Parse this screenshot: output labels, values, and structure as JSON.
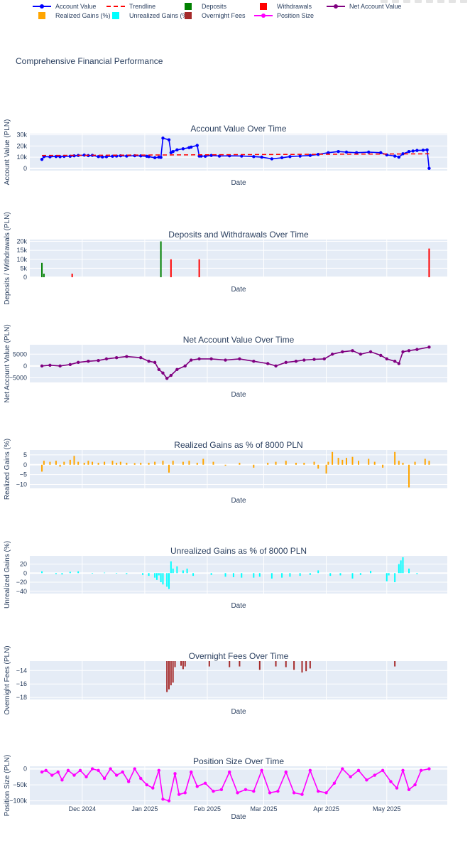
{
  "title": "Comprehensive Financial Performance",
  "legend": [
    {
      "label": "Account Value",
      "color": "#0000ff",
      "style": "line-marker"
    },
    {
      "label": "Trendline",
      "color": "#ff0000",
      "style": "dash"
    },
    {
      "label": "Deposits",
      "color": "#008000",
      "style": "square"
    },
    {
      "label": "Withdrawals",
      "color": "#ff0000",
      "style": "square"
    },
    {
      "label": "Net Account Value",
      "color": "#800080",
      "style": "line-marker"
    },
    {
      "label": "Realized Gains (%)",
      "color": "#ffa500",
      "style": "square"
    },
    {
      "label": "Unrealized Gains (%)",
      "color": "#00ffff",
      "style": "square"
    },
    {
      "label": "Overnight Fees",
      "color": "#a52a2a",
      "style": "square"
    },
    {
      "label": "Position Size",
      "color": "#ff00ff",
      "style": "line-marker"
    }
  ],
  "x_ticks": [
    {
      "label": "Dec 2024",
      "date": "2024-12-01"
    },
    {
      "label": "Jan 2025",
      "date": "2025-01-01"
    },
    {
      "label": "Feb 2025",
      "date": "2025-02-01"
    },
    {
      "label": "Mar 2025",
      "date": "2025-03-01"
    },
    {
      "label": "Apr 2025",
      "date": "2025-04-01"
    },
    {
      "label": "May 2025",
      "date": "2025-05-01"
    }
  ],
  "x_range": [
    "2024-11-05",
    "2025-05-31"
  ],
  "chart_data": [
    {
      "type": "line",
      "title": "Account Value Over Time",
      "xlabel": "Date",
      "ylabel": "Account Value (PLN)",
      "ylim": [
        -2000,
        31000
      ],
      "yticks": [
        {
          "v": 0,
          "label": "0"
        },
        {
          "v": 10000,
          "label": "10k"
        },
        {
          "v": 20000,
          "label": "20k"
        },
        {
          "v": 30000,
          "label": "30k"
        }
      ],
      "series": [
        {
          "name": "Account Value",
          "color": "#0000ff",
          "x": [
            "2024-11-11",
            "2024-11-12",
            "2024-11-15",
            "2024-11-18",
            "2024-11-20",
            "2024-11-22",
            "2024-11-25",
            "2024-11-27",
            "2024-11-29",
            "2024-12-02",
            "2024-12-04",
            "2024-12-06",
            "2024-12-09",
            "2024-12-11",
            "2024-12-13",
            "2024-12-16",
            "2024-12-18",
            "2024-12-20",
            "2024-12-23",
            "2024-12-27",
            "2024-12-30",
            "2025-01-02",
            "2025-01-03",
            "2025-01-06",
            "2025-01-08",
            "2025-01-09",
            "2025-01-10",
            "2025-01-13",
            "2025-01-14",
            "2025-01-15",
            "2025-01-17",
            "2025-01-20",
            "2025-01-23",
            "2025-01-24",
            "2025-01-27",
            "2025-01-28",
            "2025-01-29",
            "2025-01-31",
            "2025-02-03",
            "2025-02-07",
            "2025-02-12",
            "2025-02-18",
            "2025-02-24",
            "2025-02-28",
            "2025-03-05",
            "2025-03-10",
            "2025-03-14",
            "2025-03-19",
            "2025-03-24",
            "2025-03-28",
            "2025-04-02",
            "2025-04-07",
            "2025-04-11",
            "2025-04-16",
            "2025-04-22",
            "2025-04-28",
            "2025-05-01",
            "2025-05-05",
            "2025-05-07",
            "2025-05-09",
            "2025-05-12",
            "2025-05-14",
            "2025-05-16",
            "2025-05-19",
            "2025-05-21",
            "2025-05-22"
          ],
          "y": [
            8000,
            10500,
            10300,
            10600,
            10400,
            10700,
            10800,
            11200,
            11500,
            11800,
            11400,
            11600,
            10500,
            10200,
            10400,
            10800,
            11000,
            11200,
            11000,
            11300,
            11100,
            10800,
            10500,
            9500,
            10000,
            9800,
            27000,
            25500,
            14000,
            15000,
            16500,
            17500,
            18500,
            19000,
            20500,
            11000,
            11000,
            10800,
            11500,
            11000,
            11200,
            11000,
            10500,
            10000,
            8500,
            9500,
            10500,
            11000,
            11500,
            12500,
            14000,
            15000,
            14500,
            14000,
            14500,
            14000,
            12000,
            11000,
            10000,
            13000,
            15000,
            15500,
            16000,
            16200,
            16500,
            0
          ]
        },
        {
          "name": "Trendline",
          "color": "#ff0000",
          "dash": true,
          "x": [
            "2024-11-11",
            "2025-05-22"
          ],
          "y": [
            11500,
            13000
          ]
        }
      ]
    },
    {
      "type": "bar",
      "title": "Deposits and Withdrawals Over Time",
      "xlabel": "Date",
      "ylabel": "Deposits / Withdrawals (PLN)",
      "ylim": [
        0,
        21000
      ],
      "yticks": [
        {
          "v": 0,
          "label": "0"
        },
        {
          "v": 5000,
          "label": "5k"
        },
        {
          "v": 10000,
          "label": "10k"
        },
        {
          "v": 15000,
          "label": "15k"
        },
        {
          "v": 20000,
          "label": "20k"
        }
      ],
      "series": [
        {
          "name": "Deposits",
          "color": "#008000",
          "x": [
            "2024-11-11",
            "2024-11-12",
            "2025-01-09"
          ],
          "y": [
            8000,
            2000,
            20000
          ]
        },
        {
          "name": "Withdrawals",
          "color": "#ff0000",
          "x": [
            "2024-11-26",
            "2025-01-14",
            "2025-01-28",
            "2025-05-22"
          ],
          "y": [
            2000,
            10000,
            10000,
            16000
          ]
        }
      ]
    },
    {
      "type": "line",
      "title": "Net Account Value Over Time",
      "xlabel": "Date",
      "ylabel": "Net Account Value (PLN)",
      "ylim": [
        -7000,
        9000
      ],
      "yticks": [
        {
          "v": -5000,
          "label": "−5000"
        },
        {
          "v": 0,
          "label": "0"
        },
        {
          "v": 5000,
          "label": "5000"
        }
      ],
      "series": [
        {
          "name": "Net Account Value",
          "color": "#800080",
          "x": [
            "2024-11-11",
            "2024-11-15",
            "2024-11-20",
            "2024-11-25",
            "2024-11-29",
            "2024-12-04",
            "2024-12-09",
            "2024-12-13",
            "2024-12-18",
            "2024-12-23",
            "2024-12-30",
            "2025-01-03",
            "2025-01-06",
            "2025-01-08",
            "2025-01-10",
            "2025-01-12",
            "2025-01-14",
            "2025-01-17",
            "2025-01-21",
            "2025-01-24",
            "2025-01-28",
            "2025-02-03",
            "2025-02-10",
            "2025-02-17",
            "2025-02-24",
            "2025-03-03",
            "2025-03-07",
            "2025-03-12",
            "2025-03-17",
            "2025-03-21",
            "2025-03-26",
            "2025-03-31",
            "2025-04-04",
            "2025-04-09",
            "2025-04-14",
            "2025-04-18",
            "2025-04-23",
            "2025-04-28",
            "2025-05-01",
            "2025-05-05",
            "2025-05-07",
            "2025-05-09",
            "2025-05-12",
            "2025-05-16",
            "2025-05-22"
          ],
          "y": [
            0,
            300,
            0,
            600,
            1500,
            2000,
            2300,
            3000,
            3500,
            4000,
            3500,
            2000,
            1500,
            -1500,
            -3000,
            -5300,
            -4000,
            -1500,
            0,
            2500,
            3000,
            3000,
            2500,
            3000,
            2000,
            1000,
            0,
            1500,
            2000,
            2500,
            2800,
            3000,
            5000,
            6000,
            6500,
            5000,
            6000,
            4500,
            3000,
            2000,
            1000,
            6000,
            6500,
            7000,
            8000
          ]
        }
      ]
    },
    {
      "type": "bar",
      "title": "Realized Gains as % of 8000 PLN",
      "xlabel": "Date",
      "ylabel": "Realized Gains (%)",
      "ylim": [
        -12,
        7.5
      ],
      "yticks": [
        {
          "v": -10,
          "label": "−10"
        },
        {
          "v": -5,
          "label": "−5"
        },
        {
          "v": 0,
          "label": "0"
        },
        {
          "v": 5,
          "label": "5"
        }
      ],
      "series": [
        {
          "name": "Realized Gains (%)",
          "color": "#ffa500",
          "x": [
            "2024-11-11",
            "2024-11-12",
            "2024-11-15",
            "2024-11-18",
            "2024-11-20",
            "2024-11-22",
            "2024-11-25",
            "2024-11-27",
            "2024-11-29",
            "2024-12-02",
            "2024-12-04",
            "2024-12-06",
            "2024-12-09",
            "2024-12-12",
            "2024-12-16",
            "2024-12-18",
            "2024-12-20",
            "2024-12-23",
            "2024-12-27",
            "2024-12-30",
            "2025-01-03",
            "2025-01-06",
            "2025-01-10",
            "2025-01-13",
            "2025-01-15",
            "2025-01-20",
            "2025-01-23",
            "2025-01-27",
            "2025-01-30",
            "2025-02-04",
            "2025-02-10",
            "2025-02-17",
            "2025-02-24",
            "2025-03-03",
            "2025-03-07",
            "2025-03-12",
            "2025-03-17",
            "2025-03-21",
            "2025-03-26",
            "2025-03-28",
            "2025-04-01",
            "2025-04-02",
            "2025-04-04",
            "2025-04-07",
            "2025-04-09",
            "2025-04-11",
            "2025-04-14",
            "2025-04-17",
            "2025-04-22",
            "2025-04-25",
            "2025-04-29",
            "2025-05-05",
            "2025-05-07",
            "2025-05-09",
            "2025-05-12",
            "2025-05-15",
            "2025-05-20",
            "2025-05-22"
          ],
          "y": [
            -3.5,
            2,
            1.5,
            2,
            -1,
            1.5,
            2.5,
            4.5,
            1.5,
            1,
            2,
            1.5,
            1,
            1.5,
            2,
            1,
            1.5,
            1,
            0.8,
            1,
            1,
            1.5,
            2,
            -4,
            2,
            1.5,
            2,
            1,
            3,
            1.5,
            -0.5,
            1,
            -1.5,
            1,
            1.5,
            2,
            1,
            1,
            1.5,
            -2,
            -4.5,
            1.5,
            6.5,
            3.5,
            2.5,
            3.5,
            4,
            2,
            3,
            1.5,
            -1.5,
            6.5,
            2,
            1,
            -11.5,
            1.5,
            3,
            2
          ]
        }
      ]
    },
    {
      "type": "bar",
      "title": "Unrealized Gains as % of 8000 PLN",
      "xlabel": "Date",
      "ylabel": "Unrealized Gains (%)",
      "ylim": [
        -45,
        38
      ],
      "yticks": [
        {
          "v": -40,
          "label": "−40"
        },
        {
          "v": -20,
          "label": "−20"
        },
        {
          "v": 0,
          "label": "0"
        },
        {
          "v": 20,
          "label": "20"
        }
      ],
      "series": [
        {
          "name": "Unrealized Gains (%)",
          "color": "#00ffff",
          "x": [
            "2024-11-11",
            "2024-11-18",
            "2024-11-21",
            "2024-11-25",
            "2024-11-29",
            "2024-12-06",
            "2024-12-12",
            "2024-12-18",
            "2024-12-23",
            "2024-12-31",
            "2025-01-03",
            "2025-01-06",
            "2025-01-07",
            "2025-01-08",
            "2025-01-09",
            "2025-01-10",
            "2025-01-12",
            "2025-01-13",
            "2025-01-14",
            "2025-01-15",
            "2025-01-17",
            "2025-01-20",
            "2025-01-22",
            "2025-01-25",
            "2025-02-03",
            "2025-02-10",
            "2025-02-14",
            "2025-02-18",
            "2025-02-24",
            "2025-02-27",
            "2025-03-05",
            "2025-03-10",
            "2025-03-14",
            "2025-03-19",
            "2025-03-24",
            "2025-03-28",
            "2025-04-03",
            "2025-04-08",
            "2025-04-14",
            "2025-04-18",
            "2025-04-23",
            "2025-05-01",
            "2025-05-02",
            "2025-05-05",
            "2025-05-07",
            "2025-05-08",
            "2025-05-09",
            "2025-05-12",
            "2025-05-16"
          ],
          "y": [
            4,
            -2,
            -3,
            3,
            4,
            -1,
            1,
            -1,
            -2,
            -4,
            -6,
            -10,
            -15,
            -5,
            -20,
            -25,
            -30,
            -35,
            26,
            10,
            15,
            6,
            10,
            -6,
            -4,
            -8,
            -9,
            -10,
            -10,
            -8,
            -12,
            -10,
            -8,
            -6,
            -4,
            6,
            -6,
            -5,
            -12,
            -4,
            5,
            -18,
            -5,
            -20,
            20,
            28,
            35,
            10,
            -2
          ]
        }
      ]
    },
    {
      "type": "bar",
      "title": "Overnight Fees Over Time",
      "xlabel": "Date",
      "ylabel": "Overnight Fees (PLN)",
      "ylim": [
        -18.3,
        -12.6
      ],
      "yticks": [
        {
          "v": -18,
          "label": "−18"
        },
        {
          "v": -16,
          "label": "−16"
        },
        {
          "v": -14,
          "label": "−14"
        }
      ],
      "series": [
        {
          "name": "Overnight Fees",
          "color": "#a52a2a",
          "x": [
            "2025-01-12",
            "2025-01-13",
            "2025-01-14",
            "2025-01-15",
            "2025-01-16",
            "2025-01-19",
            "2025-01-20",
            "2025-01-21",
            "2025-02-02",
            "2025-02-12",
            "2025-02-17",
            "2025-02-27",
            "2025-03-07",
            "2025-03-12",
            "2025-03-16",
            "2025-03-20",
            "2025-03-22",
            "2025-03-24",
            "2025-05-05"
          ],
          "y": [
            -17.2,
            -16.8,
            -16.2,
            -15.8,
            -13.5,
            -13.3,
            -13.8,
            -13.4,
            -13.4,
            -13.5,
            -13.4,
            -13.9,
            -13.4,
            -13.5,
            -13.9,
            -14.3,
            -14.1,
            -13.7,
            -13.4
          ]
        }
      ]
    },
    {
      "type": "line",
      "title": "Position Size Over Time",
      "xlabel": "Date",
      "ylabel": "Position Size (PLN)",
      "ylim": [
        -112000,
        8000
      ],
      "yticks": [
        {
          "v": -100000,
          "label": "−100k"
        },
        {
          "v": -50000,
          "label": "−50k"
        },
        {
          "v": 0,
          "label": "0"
        }
      ],
      "series": [
        {
          "name": "Position Size",
          "color": "#ff00ff",
          "x": [
            "2024-11-11",
            "2024-11-13",
            "2024-11-16",
            "2024-11-19",
            "2024-11-21",
            "2024-11-24",
            "2024-11-27",
            "2024-11-30",
            "2024-12-03",
            "2024-12-06",
            "2024-12-09",
            "2024-12-12",
            "2024-12-15",
            "2024-12-18",
            "2024-12-21",
            "2024-12-24",
            "2024-12-27",
            "2024-12-30",
            "2025-01-02",
            "2025-01-05",
            "2025-01-08",
            "2025-01-10",
            "2025-01-13",
            "2025-01-16",
            "2025-01-18",
            "2025-01-21",
            "2025-01-24",
            "2025-01-27",
            "2025-01-31",
            "2025-02-04",
            "2025-02-08",
            "2025-02-12",
            "2025-02-16",
            "2025-02-20",
            "2025-02-24",
            "2025-02-28",
            "2025-03-04",
            "2025-03-08",
            "2025-03-12",
            "2025-03-16",
            "2025-03-20",
            "2025-03-24",
            "2025-03-28",
            "2025-04-01",
            "2025-04-05",
            "2025-04-09",
            "2025-04-13",
            "2025-04-17",
            "2025-04-21",
            "2025-04-25",
            "2025-04-29",
            "2025-05-03",
            "2025-05-06",
            "2025-05-09",
            "2025-05-12",
            "2025-05-15",
            "2025-05-18",
            "2025-05-22"
          ],
          "y": [
            -10000,
            -5000,
            -20000,
            -10000,
            -35000,
            -5000,
            -20000,
            -5000,
            -25000,
            0,
            -5000,
            -30000,
            0,
            -20000,
            -10000,
            -40000,
            0,
            -30000,
            -50000,
            -60000,
            -5000,
            -95000,
            -100000,
            -15000,
            -80000,
            -75000,
            -10000,
            -55000,
            -45000,
            -70000,
            -65000,
            -10000,
            -75000,
            -65000,
            -70000,
            -5000,
            -75000,
            -70000,
            -10000,
            -75000,
            -80000,
            -5000,
            -70000,
            -75000,
            -45000,
            0,
            -25000,
            -5000,
            -35000,
            -20000,
            -5000,
            -40000,
            -60000,
            -5000,
            -65000,
            -50000,
            -5000,
            0
          ]
        }
      ]
    }
  ]
}
